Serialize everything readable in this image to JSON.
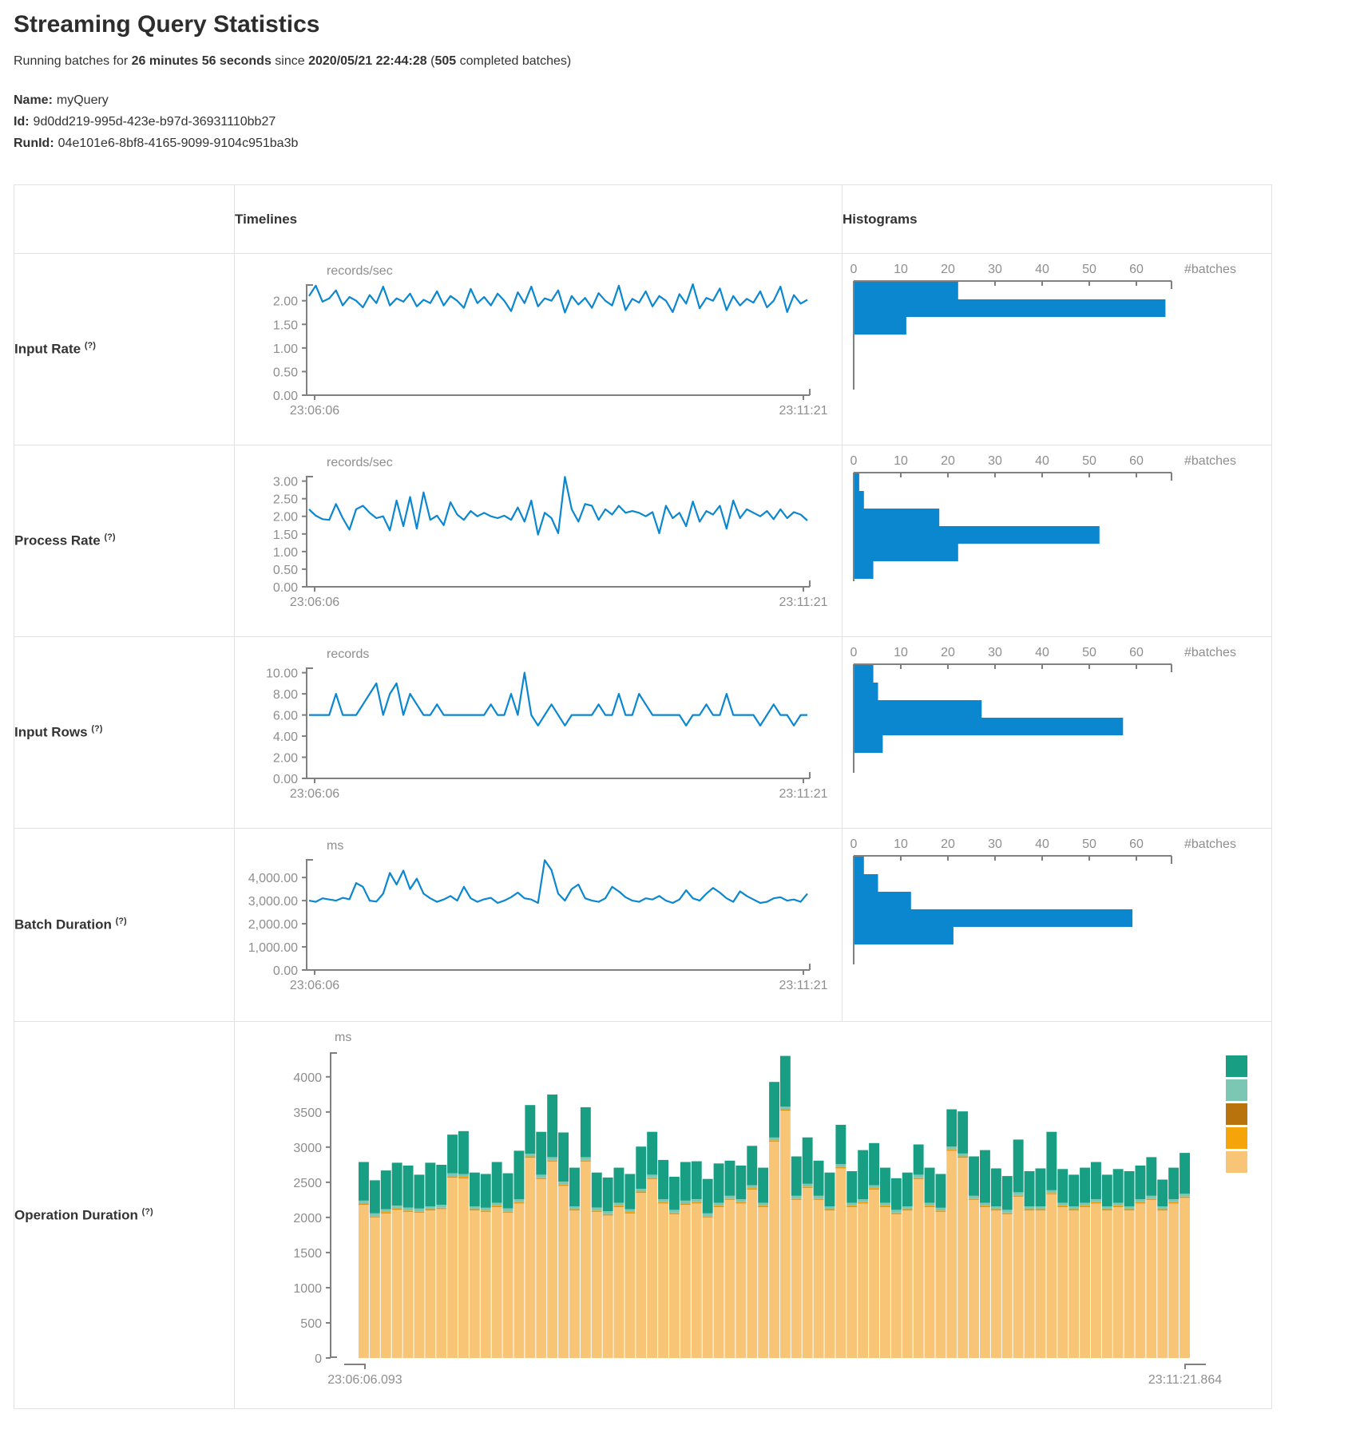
{
  "page": {
    "title": "Streaming Query Statistics",
    "subtitle": {
      "prefix": "Running batches for ",
      "duration": "26 minutes 56 seconds",
      "mid": " since ",
      "start_time": "2020/05/21 22:44:28",
      "paren": " (",
      "completed_batches": "505",
      "suffix": " completed batches)"
    },
    "name_label": "Name:",
    "name_value": "myQuery",
    "id_label": "Id:",
    "id_value": "9d0dd219-995d-423e-b97d-36931110bb27",
    "runid_label": "RunId:",
    "runid_value": "04e101e6-8bf8-4165-9099-9104c951ba3b"
  },
  "table": {
    "header": {
      "timelines": "Timelines",
      "histograms": "Histograms"
    },
    "rows": [
      {
        "label": "Input Rate",
        "help": "(?)"
      },
      {
        "label": "Process Rate",
        "help": "(?)"
      },
      {
        "label": "Input Rows",
        "help": "(?)"
      },
      {
        "label": "Batch Duration",
        "help": "(?)"
      },
      {
        "label": "Operation Duration",
        "help": "(?)"
      }
    ]
  },
  "colors": {
    "accent_blue": "#0b87d0",
    "axis": "#808080",
    "tick_text": "#8e8e8e",
    "teal": "#189e82",
    "light_teal": "#7cc7b3",
    "dark_gold": "#b8730d",
    "orange": "#f5a409",
    "tan": "#f8c577"
  },
  "chart_data": [
    {
      "id": "input-rate-timeline",
      "type": "line",
      "unit": "records/sec",
      "y_ticks": [
        "2.00",
        "1.50",
        "1.00",
        "0.50",
        "0.00"
      ],
      "y_tick_values": [
        2,
        1.5,
        1,
        0.5,
        0
      ],
      "y_max": 2.35,
      "x_start_label": "23:06:06",
      "x_end_label": "23:11:21",
      "values": [
        2.1,
        2.32,
        1.98,
        2.05,
        2.22,
        1.9,
        2.08,
        2.0,
        1.86,
        2.12,
        1.95,
        2.3,
        1.9,
        2.05,
        1.98,
        2.15,
        1.88,
        2.02,
        1.95,
        2.2,
        1.9,
        2.1,
        2.0,
        1.85,
        2.25,
        1.95,
        2.08,
        1.9,
        2.15,
        2.0,
        1.78,
        2.18,
        1.95,
        2.3,
        1.88,
        2.05,
        2.0,
        2.22,
        1.75,
        2.1,
        1.92,
        2.06,
        1.85,
        2.16,
        2.0,
        1.9,
        2.32,
        1.8,
        2.04,
        1.96,
        2.2,
        1.88,
        2.1,
        2.0,
        1.76,
        2.14,
        1.94,
        2.35,
        1.84,
        2.06,
        2.0,
        2.26,
        1.8,
        2.1,
        1.9,
        2.04,
        1.96,
        2.2,
        1.86,
        2.0,
        2.3,
        1.76,
        2.12,
        1.94,
        2.02
      ]
    },
    {
      "id": "input-rate-histogram",
      "type": "bar",
      "orientation": "horizontal",
      "x_ticks": [
        0,
        10,
        20,
        30,
        40,
        50,
        60
      ],
      "x_label": "#batches",
      "bars": [
        22,
        66,
        11
      ]
    },
    {
      "id": "process-rate-timeline",
      "type": "line",
      "unit": "records/sec",
      "y_ticks": [
        "3.00",
        "2.50",
        "2.00",
        "1.50",
        "1.00",
        "0.50",
        "0.00"
      ],
      "y_tick_values": [
        3,
        2.5,
        2,
        1.5,
        1,
        0.5,
        0
      ],
      "y_max": 3.15,
      "x_start_label": "23:06:06",
      "x_end_label": "23:11:21",
      "values": [
        2.2,
        2.02,
        1.92,
        1.9,
        2.35,
        1.95,
        1.62,
        2.2,
        2.3,
        2.1,
        1.95,
        2.0,
        1.6,
        2.45,
        1.72,
        2.55,
        1.65,
        2.68,
        1.9,
        2.02,
        1.75,
        2.4,
        2.05,
        1.9,
        2.15,
        2.0,
        2.1,
        2.0,
        1.95,
        2.02,
        1.9,
        2.25,
        1.85,
        2.45,
        1.48,
        2.1,
        1.95,
        1.52,
        3.12,
        2.2,
        1.85,
        2.35,
        2.3,
        1.9,
        2.2,
        2.05,
        2.3,
        2.1,
        2.15,
        2.1,
        2.0,
        2.12,
        1.52,
        2.3,
        1.95,
        2.1,
        1.72,
        2.42,
        1.85,
        2.15,
        2.05,
        2.3,
        1.65,
        2.45,
        1.95,
        2.2,
        2.1,
        2.0,
        2.15,
        1.92,
        2.2,
        1.95,
        2.12,
        2.05,
        1.88
      ]
    },
    {
      "id": "process-rate-histogram",
      "type": "bar",
      "orientation": "horizontal",
      "x_ticks": [
        0,
        10,
        20,
        30,
        40,
        50,
        60
      ],
      "x_label": "#batches",
      "bars": [
        1,
        2,
        18,
        52,
        22,
        4
      ]
    },
    {
      "id": "input-rows-timeline",
      "type": "line",
      "unit": "records",
      "y_ticks": [
        "10.00",
        "8.00",
        "6.00",
        "4.00",
        "2.00",
        "0.00"
      ],
      "y_tick_values": [
        10,
        8,
        6,
        4,
        2,
        0
      ],
      "y_max": 10.5,
      "x_start_label": "23:06:06",
      "x_end_label": "23:11:21",
      "values": [
        6,
        6,
        6,
        6,
        8,
        6,
        6,
        6,
        7,
        8,
        9,
        6,
        8,
        9,
        6,
        8,
        7,
        6,
        6,
        7,
        6,
        6,
        6,
        6,
        6,
        6,
        6,
        7,
        6,
        6,
        8,
        6,
        10,
        6,
        5,
        6,
        7,
        6,
        5,
        6,
        6,
        6,
        6,
        7,
        6,
        6,
        8,
        6,
        6,
        8,
        7,
        6,
        6,
        6,
        6,
        6,
        5,
        6,
        6,
        7,
        6,
        6,
        8,
        6,
        6,
        6,
        6,
        5,
        6,
        7,
        6,
        6,
        5,
        6,
        6
      ]
    },
    {
      "id": "input-rows-histogram",
      "type": "bar",
      "orientation": "horizontal",
      "x_ticks": [
        0,
        10,
        20,
        30,
        40,
        50,
        60
      ],
      "x_label": "#batches",
      "bars": [
        4,
        5,
        27,
        57,
        6
      ]
    },
    {
      "id": "batch-duration-timeline",
      "type": "line",
      "unit": "ms",
      "y_ticks": [
        "4,000.00",
        "3,000.00",
        "2,000.00",
        "1,000.00",
        "0.00"
      ],
      "y_tick_values": [
        4000,
        3000,
        2000,
        1000,
        0
      ],
      "y_max": 4800,
      "x_start_label": "23:06:06",
      "x_end_label": "23:11:21",
      "values": [
        3000,
        2950,
        3100,
        3050,
        3000,
        3120,
        3060,
        3760,
        3600,
        3000,
        2960,
        3300,
        4200,
        3700,
        4300,
        3500,
        3950,
        3300,
        3100,
        2950,
        3050,
        3200,
        3000,
        3600,
        3100,
        2950,
        3060,
        3120,
        2900,
        3000,
        3150,
        3350,
        3100,
        3050,
        2900,
        4750,
        4320,
        3300,
        3000,
        3500,
        3700,
        3100,
        3000,
        2950,
        3100,
        3600,
        3400,
        3150,
        3000,
        2950,
        3100,
        3050,
        3200,
        3000,
        2900,
        3050,
        3450,
        3100,
        3000,
        3300,
        3550,
        3350,
        3100,
        2950,
        3400,
        3200,
        3050,
        2900,
        2950,
        3100,
        3150,
        3000,
        3050,
        2950,
        3300
      ]
    },
    {
      "id": "batch-duration-histogram",
      "type": "bar",
      "orientation": "horizontal",
      "x_ticks": [
        0,
        10,
        20,
        30,
        40,
        50,
        60
      ],
      "x_label": "#batches",
      "bars": [
        2,
        5,
        12,
        59,
        21
      ]
    },
    {
      "id": "operation-duration",
      "type": "bar",
      "stacked": true,
      "unit": "ms",
      "y_ticks": [
        "4000",
        "3500",
        "3000",
        "2500",
        "2000",
        "1500",
        "1000",
        "500",
        "0"
      ],
      "y_tick_values": [
        4000,
        3500,
        3000,
        2500,
        2000,
        1500,
        1000,
        500,
        0
      ],
      "y_max": 4350,
      "x_start_label": "23:06:06.093",
      "x_end_label": "23:11:21.864",
      "legend": [
        {
          "name": "teal",
          "color": "#189e82"
        },
        {
          "name": "light-teal",
          "color": "#7cc7b3"
        },
        {
          "name": "dark-gold",
          "color": "#b8730d"
        },
        {
          "name": "orange",
          "color": "#f5a409"
        },
        {
          "name": "tan",
          "color": "#f8c577"
        }
      ],
      "series": [
        {
          "name": "tan",
          "color": "#f8c577",
          "values": [
            2180,
            2000,
            2060,
            2110,
            2080,
            2070,
            2100,
            2120,
            2570,
            2560,
            2100,
            2080,
            2150,
            2070,
            2200,
            2850,
            2550,
            2800,
            2450,
            2100,
            2800,
            2080,
            2030,
            2150,
            2060,
            2350,
            2550,
            2200,
            2050,
            2180,
            2200,
            2000,
            2150,
            2250,
            2200,
            2400,
            2150,
            3080,
            3520,
            2250,
            2420,
            2250,
            2100,
            2700,
            2150,
            2200,
            2400,
            2150,
            2050,
            2100,
            2550,
            2150,
            2080,
            2950,
            2850,
            2250,
            2150,
            2100,
            2050,
            2300,
            2100,
            2100,
            2330,
            2150,
            2100,
            2150,
            2200,
            2100,
            2150,
            2100,
            2200,
            2250,
            2100,
            2200,
            2280
          ]
        },
        {
          "name": "dark-gold",
          "color": "#b8730d",
          "constant": 8
        },
        {
          "name": "orange",
          "color": "#f5a409",
          "constant": 10
        },
        {
          "name": "light-teal",
          "color": "#7cc7b3",
          "constant": 40
        },
        {
          "name": "teal",
          "color": "#189e82",
          "values": [
            550,
            470,
            550,
            610,
            600,
            480,
            620,
            570,
            550,
            610,
            480,
            480,
            580,
            500,
            690,
            690,
            610,
            890,
            700,
            550,
            710,
            500,
            480,
            500,
            500,
            600,
            610,
            560,
            470,
            550,
            540,
            490,
            560,
            500,
            480,
            560,
            500,
            790,
            720,
            560,
            660,
            500,
            480,
            560,
            450,
            700,
            600,
            500,
            450,
            480,
            430,
            500,
            480,
            530,
            600,
            560,
            750,
            540,
            480,
            750,
            500,
            540,
            830,
            480,
            450,
            500,
            530,
            450,
            480,
            500,
            480,
            550,
            380,
            450,
            580
          ]
        }
      ]
    }
  ]
}
